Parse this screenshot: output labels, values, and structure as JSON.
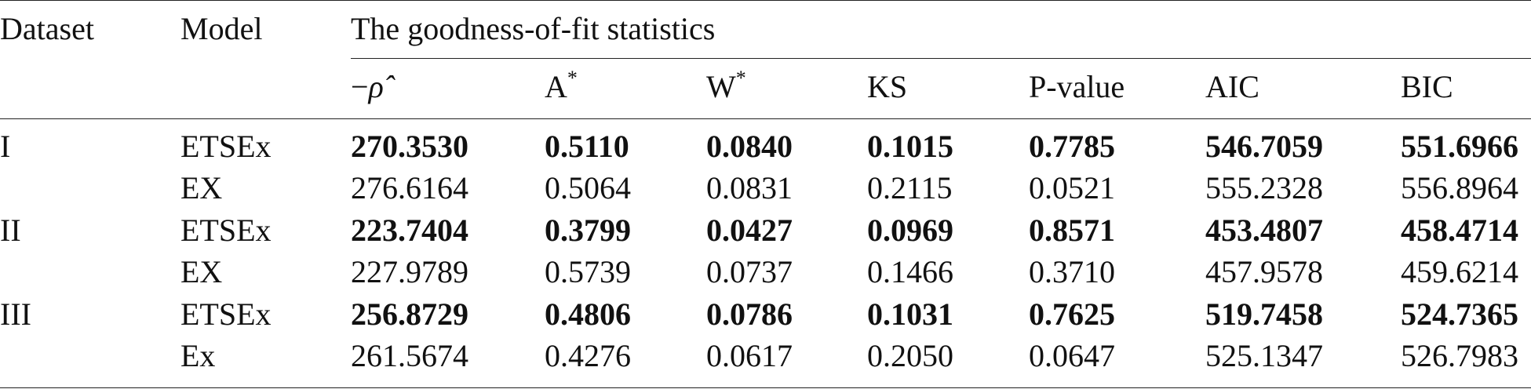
{
  "header": {
    "dataset": "Dataset",
    "model": "Model",
    "group": "The goodness-of-fit statistics"
  },
  "columns": {
    "neg_sign": "−",
    "rho_symbol": "ρ̂",
    "a_base": "A",
    "a_sup": "*",
    "w_base": "W",
    "w_sup": "*",
    "ks": "KS",
    "pvalue": "P-value",
    "aic": "AIC",
    "bic": "BIC"
  },
  "rows": [
    {
      "dataset": "I",
      "model": "ETSEx",
      "bold": true,
      "values": [
        "270.3530",
        "0.5110",
        "0.0840",
        "0.1015",
        "0.7785",
        "546.7059",
        "551.6966"
      ]
    },
    {
      "dataset": "",
      "model": "EX",
      "bold": false,
      "values": [
        "276.6164",
        "0.5064",
        "0.0831",
        "0.2115",
        "0.0521",
        "555.2328",
        "556.8964"
      ]
    },
    {
      "dataset": "II",
      "model": "ETSEx",
      "bold": true,
      "values": [
        "223.7404",
        "0.3799",
        "0.0427",
        "0.0969",
        "0.8571",
        "453.4807",
        "458.4714"
      ]
    },
    {
      "dataset": "",
      "model": "EX",
      "bold": false,
      "values": [
        "227.9789",
        "0.5739",
        "0.0737",
        "0.1466",
        "0.3710",
        "457.9578",
        "459.6214"
      ]
    },
    {
      "dataset": "III",
      "model": "ETSEx",
      "bold": true,
      "values": [
        "256.8729",
        "0.4806",
        "0.0786",
        "0.1031",
        "0.7625",
        "519.7458",
        "524.7365"
      ]
    },
    {
      "dataset": "",
      "model": "Ex",
      "bold": false,
      "values": [
        "261.5674",
        "0.4276",
        "0.0617",
        "0.2050",
        "0.0647",
        "525.1347",
        "526.7983"
      ]
    }
  ]
}
